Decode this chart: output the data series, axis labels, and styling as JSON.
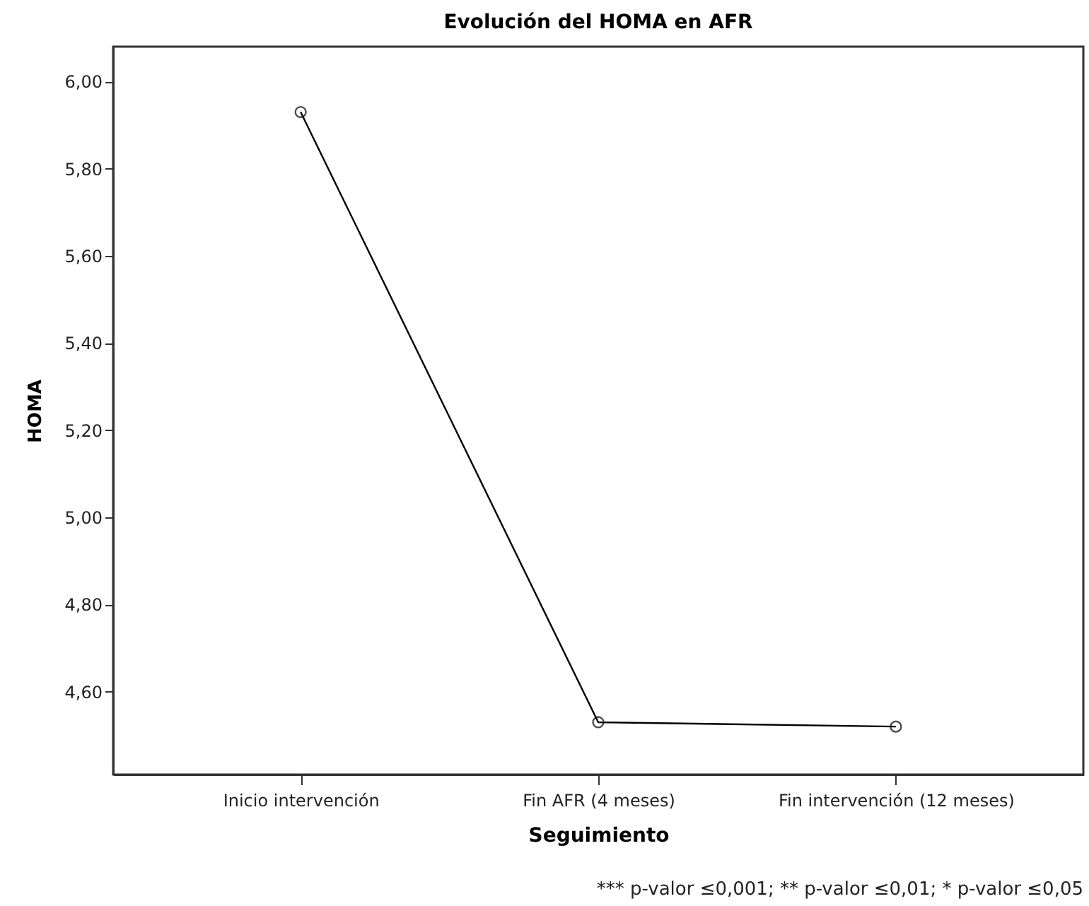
{
  "chart_data": {
    "type": "line",
    "title": "Evolución del HOMA en AFR",
    "xlabel": "Seguimiento",
    "ylabel": "HOMA",
    "categories": [
      "Inicio intervención",
      "Fin AFR (4 meses)",
      "Fin intervención (12 meses)"
    ],
    "series": [
      {
        "color": "#000000",
        "values": [
          5.93,
          4.53,
          4.52
        ]
      }
    ],
    "ylim": [
      4.41,
      6.08
    ],
    "yticks": [
      {
        "value": 4.6,
        "label": "4,60"
      },
      {
        "value": 4.8,
        "label": "4,80"
      },
      {
        "value": 5.0,
        "label": "5,00"
      },
      {
        "value": 5.2,
        "label": "5,20"
      },
      {
        "value": 5.4,
        "label": "5,40"
      },
      {
        "value": 5.6,
        "label": "5,60"
      },
      {
        "value": 5.8,
        "label": "5,80"
      },
      {
        "value": 6.0,
        "label": "6,00"
      }
    ],
    "grid": false,
    "marker": "circle",
    "line_style": "solid",
    "annotations": [
      "*** p-valor ≤0,001; ** p-valor ≤0,01; * p-valor ≤0,05"
    ]
  }
}
